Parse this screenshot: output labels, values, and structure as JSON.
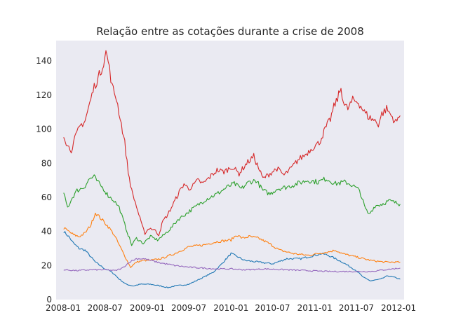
{
  "chart_data": {
    "type": "line",
    "title": "Relação entre as cotações durante a crise de 2008",
    "xlabel": "",
    "ylabel": "",
    "xlim": [
      "2007-12-01",
      "2012-01-25"
    ],
    "ylim": [
      0,
      152
    ],
    "grid": false,
    "legend": "none",
    "background": "#eaeaf2",
    "x_ticks": [
      "2008-01",
      "2008-07",
      "2009-01",
      "2009-07",
      "2010-01",
      "2010-07",
      "2011-01",
      "2011-07",
      "2012-01"
    ],
    "y_ticks": [
      0,
      20,
      40,
      60,
      80,
      100,
      120,
      140
    ],
    "series": [
      {
        "color": "#1f77b4",
        "points": [
          [
            "2008-01-03",
            40
          ],
          [
            "2008-01-25",
            37
          ],
          [
            "2008-02-15",
            33
          ],
          [
            "2008-03-10",
            30
          ],
          [
            "2008-04-05",
            29
          ],
          [
            "2008-05-01",
            25
          ],
          [
            "2008-05-20",
            22
          ],
          [
            "2008-06-10",
            20
          ],
          [
            "2008-07-01",
            18
          ],
          [
            "2008-07-20",
            17
          ],
          [
            "2008-08-10",
            15
          ],
          [
            "2008-09-01",
            12
          ],
          [
            "2008-10-01",
            9
          ],
          [
            "2008-11-01",
            8
          ],
          [
            "2008-12-01",
            9
          ],
          [
            "2009-01-15",
            9
          ],
          [
            "2009-03-01",
            8
          ],
          [
            "2009-04-01",
            7
          ],
          [
            "2009-05-01",
            8
          ],
          [
            "2009-06-01",
            8.5
          ],
          [
            "2009-07-01",
            9
          ],
          [
            "2009-08-01",
            11
          ],
          [
            "2009-09-01",
            13
          ],
          [
            "2009-10-15",
            16
          ],
          [
            "2009-11-15",
            20
          ],
          [
            "2010-01-01",
            27
          ],
          [
            "2010-02-01",
            25
          ],
          [
            "2010-03-01",
            23
          ],
          [
            "2010-05-01",
            22
          ],
          [
            "2010-07-01",
            21
          ],
          [
            "2010-09-01",
            24
          ],
          [
            "2010-11-01",
            24
          ],
          [
            "2011-01-01",
            26
          ],
          [
            "2011-02-01",
            27
          ],
          [
            "2011-03-01",
            26
          ],
          [
            "2011-05-01",
            22
          ],
          [
            "2011-07-01",
            17
          ],
          [
            "2011-08-01",
            13
          ],
          [
            "2011-09-01",
            11
          ],
          [
            "2011-10-15",
            12
          ],
          [
            "2011-11-15",
            14
          ],
          [
            "2011-12-15",
            13
          ],
          [
            "2012-01-08",
            12
          ]
        ]
      },
      {
        "color": "#ff7f0e",
        "points": [
          [
            "2008-01-03",
            42
          ],
          [
            "2008-01-25",
            40
          ],
          [
            "2008-02-15",
            38
          ],
          [
            "2008-03-10",
            37
          ],
          [
            "2008-04-05",
            39
          ],
          [
            "2008-05-01",
            44
          ],
          [
            "2008-05-20",
            51
          ],
          [
            "2008-06-10",
            48
          ],
          [
            "2008-07-01",
            45
          ],
          [
            "2008-07-20",
            42
          ],
          [
            "2008-08-10",
            38
          ],
          [
            "2008-09-01",
            32
          ],
          [
            "2008-10-01",
            24
          ],
          [
            "2008-10-20",
            19
          ],
          [
            "2008-11-15",
            22
          ],
          [
            "2008-12-15",
            23
          ],
          [
            "2009-01-15",
            23
          ],
          [
            "2009-03-01",
            24
          ],
          [
            "2009-05-01",
            27
          ],
          [
            "2009-07-01",
            31
          ],
          [
            "2009-09-01",
            32
          ],
          [
            "2009-11-01",
            34
          ],
          [
            "2010-01-01",
            35
          ],
          [
            "2010-01-25",
            38
          ],
          [
            "2010-02-20",
            36
          ],
          [
            "2010-03-20",
            37
          ],
          [
            "2010-05-01",
            36
          ],
          [
            "2010-06-15",
            33
          ],
          [
            "2010-08-01",
            29
          ],
          [
            "2010-10-01",
            27
          ],
          [
            "2010-12-01",
            26
          ],
          [
            "2011-01-15",
            27
          ],
          [
            "2011-03-01",
            28
          ],
          [
            "2011-04-01",
            29
          ],
          [
            "2011-05-01",
            27
          ],
          [
            "2011-07-01",
            25
          ],
          [
            "2011-09-01",
            23
          ],
          [
            "2011-11-01",
            22
          ],
          [
            "2012-01-08",
            22
          ]
        ]
      },
      {
        "color": "#2ca02c",
        "points": [
          [
            "2008-01-03",
            62
          ],
          [
            "2008-01-20",
            54
          ],
          [
            "2008-02-10",
            60
          ],
          [
            "2008-03-01",
            64
          ],
          [
            "2008-04-01",
            66
          ],
          [
            "2008-04-25",
            71
          ],
          [
            "2008-05-15",
            72
          ],
          [
            "2008-06-05",
            68
          ],
          [
            "2008-06-25",
            65
          ],
          [
            "2008-07-15",
            61
          ],
          [
            "2008-08-10",
            58
          ],
          [
            "2008-09-01",
            54
          ],
          [
            "2008-09-20",
            46
          ],
          [
            "2008-10-10",
            38
          ],
          [
            "2008-10-25",
            32
          ],
          [
            "2008-11-15",
            36
          ],
          [
            "2008-12-15",
            33
          ],
          [
            "2009-01-15",
            37
          ],
          [
            "2009-02-15",
            35
          ],
          [
            "2009-03-15",
            38
          ],
          [
            "2009-04-15",
            42
          ],
          [
            "2009-05-15",
            47
          ],
          [
            "2009-06-15",
            50
          ],
          [
            "2009-07-15",
            53
          ],
          [
            "2009-08-15",
            56
          ],
          [
            "2009-09-15",
            59
          ],
          [
            "2009-11-01",
            62
          ],
          [
            "2009-12-15",
            66
          ],
          [
            "2010-01-15",
            68
          ],
          [
            "2010-02-15",
            65
          ],
          [
            "2010-03-20",
            69
          ],
          [
            "2010-04-20",
            70
          ],
          [
            "2010-05-20",
            64
          ],
          [
            "2010-06-20",
            62
          ],
          [
            "2010-07-20",
            65
          ],
          [
            "2010-09-01",
            66
          ],
          [
            "2010-10-15",
            68
          ],
          [
            "2010-12-01",
            70
          ],
          [
            "2011-01-15",
            69
          ],
          [
            "2011-02-20",
            71
          ],
          [
            "2011-04-01",
            68
          ],
          [
            "2011-05-15",
            69
          ],
          [
            "2011-06-15",
            67
          ],
          [
            "2011-07-15",
            64
          ],
          [
            "2011-08-10",
            53
          ],
          [
            "2011-08-25",
            50
          ],
          [
            "2011-09-20",
            55
          ],
          [
            "2011-10-20",
            56
          ],
          [
            "2011-11-20",
            58
          ],
          [
            "2011-12-15",
            57
          ],
          [
            "2012-01-08",
            56
          ]
        ]
      },
      {
        "color": "#d62728",
        "points": [
          [
            "2008-01-03",
            97
          ],
          [
            "2008-01-20",
            90
          ],
          [
            "2008-02-05",
            88
          ],
          [
            "2008-02-25",
            96
          ],
          [
            "2008-03-15",
            102
          ],
          [
            "2008-04-05",
            105
          ],
          [
            "2008-04-25",
            115
          ],
          [
            "2008-05-15",
            125
          ],
          [
            "2008-06-01",
            130
          ],
          [
            "2008-06-20",
            137
          ],
          [
            "2008-07-05",
            145
          ],
          [
            "2008-07-15",
            140
          ],
          [
            "2008-08-01",
            125
          ],
          [
            "2008-08-20",
            118
          ],
          [
            "2008-09-10",
            103
          ],
          [
            "2008-09-25",
            92
          ],
          [
            "2008-10-10",
            75
          ],
          [
            "2008-10-25",
            64
          ],
          [
            "2008-11-10",
            57
          ],
          [
            "2008-11-25",
            50
          ],
          [
            "2008-12-10",
            43
          ],
          [
            "2008-12-22",
            39
          ],
          [
            "2009-01-10",
            42
          ],
          [
            "2009-02-01",
            41
          ],
          [
            "2009-02-20",
            38
          ],
          [
            "2009-03-10",
            46
          ],
          [
            "2009-04-01",
            50
          ],
          [
            "2009-05-01",
            58
          ],
          [
            "2009-05-20",
            63
          ],
          [
            "2009-06-10",
            68
          ],
          [
            "2009-07-01",
            65
          ],
          [
            "2009-07-20",
            67
          ],
          [
            "2009-08-10",
            70
          ],
          [
            "2009-09-01",
            68
          ],
          [
            "2009-10-01",
            72
          ],
          [
            "2009-11-01",
            76
          ],
          [
            "2009-12-01",
            75
          ],
          [
            "2010-01-05",
            78
          ],
          [
            "2010-02-05",
            74
          ],
          [
            "2010-03-10",
            80
          ],
          [
            "2010-04-10",
            84
          ],
          [
            "2010-05-20",
            71
          ],
          [
            "2010-06-20",
            74
          ],
          [
            "2010-07-20",
            77
          ],
          [
            "2010-08-20",
            73
          ],
          [
            "2010-09-20",
            77
          ],
          [
            "2010-10-20",
            82
          ],
          [
            "2010-11-20",
            85
          ],
          [
            "2010-12-20",
            89
          ],
          [
            "2011-01-20",
            92
          ],
          [
            "2011-02-15",
            100
          ],
          [
            "2011-03-10",
            106
          ],
          [
            "2011-03-25",
            113
          ],
          [
            "2011-04-10",
            118
          ],
          [
            "2011-04-25",
            124
          ],
          [
            "2011-05-10",
            114
          ],
          [
            "2011-05-25",
            112
          ],
          [
            "2011-06-15",
            117
          ],
          [
            "2011-07-10",
            116
          ],
          [
            "2011-08-05",
            110
          ],
          [
            "2011-08-25",
            107
          ],
          [
            "2011-09-20",
            105
          ],
          [
            "2011-10-05",
            103
          ],
          [
            "2011-10-20",
            109
          ],
          [
            "2011-11-10",
            112
          ],
          [
            "2011-12-05",
            107
          ],
          [
            "2011-12-20",
            104
          ],
          [
            "2012-01-08",
            108
          ]
        ]
      },
      {
        "color": "#9467bd",
        "points": [
          [
            "2008-01-03",
            17.5
          ],
          [
            "2008-03-01",
            17
          ],
          [
            "2008-05-01",
            17.5
          ],
          [
            "2008-07-01",
            17.5
          ],
          [
            "2008-08-15",
            17
          ],
          [
            "2008-09-15",
            18.5
          ],
          [
            "2008-10-15",
            22
          ],
          [
            "2008-11-15",
            24
          ],
          [
            "2008-12-15",
            24
          ],
          [
            "2009-01-15",
            23
          ],
          [
            "2009-03-01",
            21.5
          ],
          [
            "2009-05-01",
            20
          ],
          [
            "2009-07-01",
            19
          ],
          [
            "2009-09-01",
            18.5
          ],
          [
            "2009-11-01",
            18
          ],
          [
            "2010-01-01",
            18
          ],
          [
            "2010-03-01",
            17.5
          ],
          [
            "2010-06-01",
            18
          ],
          [
            "2010-09-01",
            17.5
          ],
          [
            "2010-12-01",
            17
          ],
          [
            "2011-03-01",
            16.5
          ],
          [
            "2011-06-01",
            16.5
          ],
          [
            "2011-09-01",
            16.5
          ],
          [
            "2011-11-01",
            17.5
          ],
          [
            "2012-01-08",
            18.5
          ]
        ]
      }
    ]
  }
}
